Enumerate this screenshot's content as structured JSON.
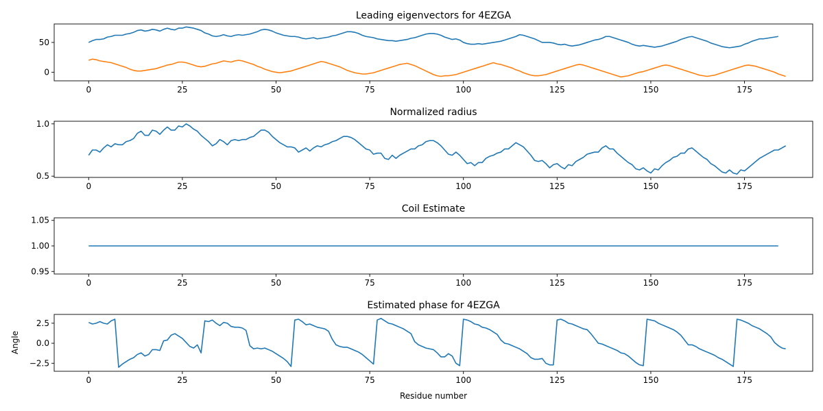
{
  "figure": {
    "xlabel": "Residue number"
  },
  "colors": {
    "series1": "#1f77b4",
    "series2": "#ff7f0e",
    "axis": "#000000"
  },
  "chart_data": [
    {
      "type": "line",
      "title": "Leading eigenvectors for 4EZGA",
      "xlabel": "",
      "ylabel": "",
      "xlim": [
        -9.2,
        193.2
      ],
      "ylim": [
        -14.5,
        81
      ],
      "xticks": [
        0,
        25,
        50,
        75,
        100,
        125,
        150,
        175
      ],
      "yticks": [
        0,
        50
      ],
      "series": [
        {
          "values": [
            50,
            53,
            55,
            55,
            56,
            59,
            60,
            62,
            62,
            62,
            64,
            65,
            67,
            70,
            71,
            69,
            70,
            72,
            71,
            69,
            72,
            74,
            72,
            71,
            74,
            74,
            76,
            75,
            74,
            72,
            70,
            66,
            64,
            61,
            60,
            61,
            63,
            61,
            60,
            62,
            63,
            62,
            63,
            64,
            66,
            68,
            71,
            72,
            71,
            69,
            66,
            64,
            62,
            61,
            60,
            60,
            59,
            57,
            56,
            57,
            58,
            56,
            57,
            58,
            59,
            61,
            62,
            64,
            66,
            68,
            68,
            67,
            65,
            62,
            60,
            59,
            58,
            56,
            55,
            54,
            53,
            53,
            52,
            53,
            54,
            55,
            57,
            58,
            60,
            62,
            64,
            65,
            65,
            64,
            62,
            59,
            57,
            55,
            56,
            54,
            50,
            48,
            47,
            47,
            48,
            47,
            48,
            49,
            50,
            51,
            52,
            54,
            56,
            58,
            60,
            63,
            62,
            60,
            58,
            56,
            53,
            50,
            50,
            50,
            49,
            47,
            46,
            47,
            45,
            44,
            45,
            46,
            48,
            50,
            52,
            54,
            55,
            57,
            60,
            60,
            58,
            56,
            54,
            52,
            50,
            47,
            45,
            44,
            45,
            44,
            43,
            42,
            43,
            44,
            46,
            48,
            50,
            52,
            55,
            57,
            59,
            60,
            58,
            56,
            54,
            52,
            49,
            47,
            45,
            43,
            42,
            41,
            42,
            43,
            44,
            47,
            49,
            52,
            54,
            56,
            56,
            57,
            58,
            59,
            60
          ]
        },
        {
          "values": [
            20,
            22,
            21,
            19,
            18,
            17,
            16,
            14,
            12,
            10,
            8,
            5,
            3,
            2,
            2,
            3,
            4,
            5,
            6,
            8,
            10,
            12,
            13,
            15,
            17,
            17,
            16,
            14,
            12,
            10,
            9,
            10,
            12,
            14,
            15,
            17,
            19,
            18,
            17,
            19,
            20,
            19,
            17,
            15,
            13,
            10,
            8,
            5,
            3,
            1,
            0,
            -1,
            0,
            1,
            2,
            4,
            6,
            8,
            10,
            12,
            14,
            16,
            18,
            17,
            15,
            13,
            11,
            9,
            6,
            3,
            1,
            -1,
            -2,
            -3,
            -3,
            -2,
            -1,
            1,
            3,
            5,
            7,
            9,
            11,
            13,
            14,
            15,
            13,
            11,
            8,
            5,
            2,
            -1,
            -4,
            -6,
            -7,
            -6,
            -6,
            -5,
            -4,
            -2,
            0,
            2,
            4,
            6,
            8,
            10,
            12,
            14,
            16,
            14,
            13,
            11,
            9,
            7,
            4,
            2,
            -1,
            -3,
            -5,
            -6,
            -6,
            -5,
            -4,
            -2,
            0,
            2,
            4,
            6,
            8,
            10,
            12,
            13,
            12,
            10,
            8,
            6,
            4,
            2,
            0,
            -2,
            -4,
            -6,
            -8,
            -7,
            -6,
            -4,
            -2,
            0,
            1,
            3,
            5,
            7,
            9,
            11,
            12,
            11,
            9,
            7,
            5,
            3,
            1,
            -1,
            -3,
            -5,
            -6,
            -7,
            -6,
            -5,
            -3,
            -1,
            1,
            3,
            5,
            7,
            9,
            11,
            12,
            11,
            10,
            8,
            6,
            4,
            2,
            0,
            -3,
            -5,
            -7
          ]
        }
      ]
    },
    {
      "type": "line",
      "title": "Normalized radius",
      "xlabel": "",
      "ylabel": "",
      "xlim": [
        -9.2,
        193.2
      ],
      "ylim": [
        0.488,
        1.025
      ],
      "xticks": [
        0,
        25,
        50,
        75,
        100,
        125,
        150,
        175
      ],
      "yticks": [
        0.5,
        1.0
      ],
      "series": [
        {
          "values": [
            0.7,
            0.75,
            0.75,
            0.73,
            0.77,
            0.8,
            0.78,
            0.81,
            0.8,
            0.8,
            0.83,
            0.84,
            0.86,
            0.91,
            0.93,
            0.89,
            0.89,
            0.94,
            0.93,
            0.9,
            0.94,
            0.97,
            0.94,
            0.94,
            0.98,
            0.97,
            1.0,
            0.98,
            0.95,
            0.93,
            0.89,
            0.86,
            0.83,
            0.79,
            0.81,
            0.85,
            0.83,
            0.8,
            0.84,
            0.85,
            0.84,
            0.85,
            0.85,
            0.87,
            0.88,
            0.91,
            0.94,
            0.94,
            0.92,
            0.88,
            0.85,
            0.82,
            0.8,
            0.78,
            0.78,
            0.77,
            0.73,
            0.75,
            0.77,
            0.74,
            0.77,
            0.79,
            0.78,
            0.8,
            0.81,
            0.83,
            0.84,
            0.86,
            0.88,
            0.88,
            0.87,
            0.85,
            0.82,
            0.79,
            0.76,
            0.75,
            0.71,
            0.72,
            0.72,
            0.67,
            0.66,
            0.7,
            0.67,
            0.7,
            0.72,
            0.74,
            0.76,
            0.76,
            0.79,
            0.8,
            0.83,
            0.84,
            0.84,
            0.82,
            0.79,
            0.75,
            0.71,
            0.7,
            0.73,
            0.7,
            0.66,
            0.62,
            0.63,
            0.6,
            0.63,
            0.63,
            0.67,
            0.69,
            0.7,
            0.72,
            0.73,
            0.76,
            0.76,
            0.79,
            0.82,
            0.8,
            0.78,
            0.74,
            0.7,
            0.65,
            0.64,
            0.65,
            0.62,
            0.58,
            0.61,
            0.62,
            0.59,
            0.57,
            0.61,
            0.6,
            0.64,
            0.66,
            0.68,
            0.71,
            0.72,
            0.73,
            0.73,
            0.77,
            0.79,
            0.76,
            0.76,
            0.72,
            0.69,
            0.66,
            0.63,
            0.61,
            0.57,
            0.56,
            0.58,
            0.55,
            0.53,
            0.57,
            0.56,
            0.6,
            0.63,
            0.65,
            0.68,
            0.69,
            0.72,
            0.72,
            0.76,
            0.77,
            0.74,
            0.71,
            0.68,
            0.66,
            0.62,
            0.6,
            0.57,
            0.54,
            0.53,
            0.56,
            0.53,
            0.52,
            0.56,
            0.55,
            0.58,
            0.61,
            0.64,
            0.67,
            0.69,
            0.71,
            0.73,
            0.75,
            0.75,
            0.77,
            0.79
          ]
        }
      ]
    },
    {
      "type": "line",
      "title": "Coil Estimate",
      "xlabel": "",
      "ylabel": "",
      "xlim": [
        -9.2,
        193.2
      ],
      "ylim": [
        0.945,
        1.055
      ],
      "xticks": [
        0,
        25,
        50,
        75,
        100,
        125,
        150,
        175
      ],
      "yticks": [
        0.95,
        1.0,
        1.05
      ],
      "series": [
        {
          "constant": 1.0
        }
      ]
    },
    {
      "type": "line",
      "title": "Estimated phase for 4EZGA",
      "xlabel": "Residue number",
      "ylabel": "Angle",
      "xlim": [
        -9.2,
        193.2
      ],
      "ylim": [
        -3.5,
        3.6
      ],
      "xticks": [
        0,
        25,
        50,
        75,
        100,
        125,
        150,
        175
      ],
      "yticks": [
        -2.5,
        0.0,
        2.5
      ],
      "series": [
        {
          "values": [
            2.6,
            2.4,
            2.5,
            2.7,
            2.5,
            2.4,
            2.8,
            3.0,
            -3.0,
            -2.6,
            -2.3,
            -2.0,
            -1.8,
            -1.4,
            -1.2,
            -1.6,
            -1.4,
            -0.8,
            -0.8,
            -0.9,
            0.3,
            0.4,
            1.0,
            1.2,
            0.9,
            0.6,
            0.1,
            -0.4,
            -0.6,
            -0.2,
            -1.2,
            2.8,
            2.7,
            2.9,
            2.5,
            2.2,
            2.6,
            2.5,
            2.1,
            2.0,
            2.0,
            1.9,
            1.6,
            -0.3,
            -0.7,
            -0.6,
            -0.7,
            -0.6,
            -0.8,
            -1.0,
            -1.3,
            -1.6,
            -1.9,
            -2.3,
            -2.9,
            2.9,
            3.0,
            2.7,
            2.3,
            2.4,
            2.2,
            2.0,
            1.9,
            1.8,
            1.5,
            0.5,
            -0.2,
            -0.4,
            -0.5,
            -0.5,
            -0.7,
            -0.9,
            -1.1,
            -1.4,
            -1.8,
            -2.2,
            -2.6,
            2.9,
            3.1,
            2.8,
            2.5,
            2.4,
            2.2,
            2.0,
            1.8,
            1.5,
            1.2,
            0.2,
            -0.2,
            -0.4,
            -0.6,
            -0.7,
            -0.8,
            -1.2,
            -1.7,
            -1.7,
            -1.3,
            -1.6,
            -2.5,
            -2.8,
            3.0,
            2.9,
            2.7,
            2.4,
            2.3,
            2.0,
            1.9,
            1.7,
            1.4,
            1.1,
            0.4,
            0.0,
            -0.1,
            -0.3,
            -0.5,
            -0.7,
            -1.0,
            -1.3,
            -1.8,
            -2.0,
            -2.0,
            -1.9,
            -2.5,
            -2.7,
            -2.7,
            2.9,
            3.0,
            2.8,
            2.5,
            2.4,
            2.2,
            2.0,
            1.8,
            1.7,
            1.2,
            0.6,
            0.0,
            -0.1,
            -0.3,
            -0.5,
            -0.7,
            -0.9,
            -1.2,
            -1.3,
            -1.6,
            -2.0,
            -2.4,
            -2.7,
            -2.8,
            3.0,
            2.9,
            2.8,
            2.5,
            2.3,
            2.1,
            1.9,
            1.7,
            1.4,
            1.0,
            0.4,
            -0.2,
            -0.2,
            -0.4,
            -0.7,
            -0.9,
            -1.1,
            -1.3,
            -1.5,
            -1.8,
            -2.0,
            -2.3,
            -2.6,
            -2.9,
            3.0,
            2.9,
            2.7,
            2.5,
            2.2,
            2.0,
            1.8,
            1.5,
            1.2,
            0.8,
            0.1,
            -0.3,
            -0.6,
            -0.7
          ]
        }
      ]
    }
  ]
}
